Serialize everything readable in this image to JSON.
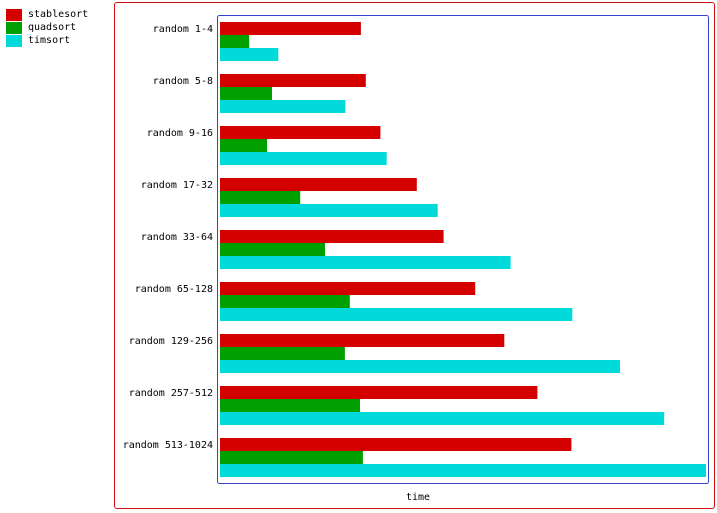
{
  "chart_data": {
    "type": "bar",
    "orientation": "horizontal",
    "categories": [
      "random 1-4",
      "random 5-8",
      "random 9-16",
      "random 17-32",
      "random 33-64",
      "random 65-128",
      "random 129-256",
      "random 257-512",
      "random 513-1024"
    ],
    "series": [
      {
        "name": "stablesort",
        "color": "#d40000",
        "values": [
          29,
          30,
          33,
          40.5,
          46,
          52.5,
          58.5,
          65.3,
          72.3
        ]
      },
      {
        "name": "quadsort",
        "color": "#00a000",
        "values": [
          6,
          10.7,
          9.7,
          16.5,
          21.6,
          26.7,
          25.7,
          28.8,
          29.4
        ]
      },
      {
        "name": "timsort",
        "color": "#00dada",
        "values": [
          12,
          25.8,
          34.3,
          44.8,
          59.8,
          72.5,
          82.3,
          91.4,
          100
        ]
      }
    ],
    "xlabel": "time",
    "ylabel": "",
    "xlim": [
      0,
      100
    ],
    "grid": false,
    "legend_position": "top-left-outside"
  }
}
